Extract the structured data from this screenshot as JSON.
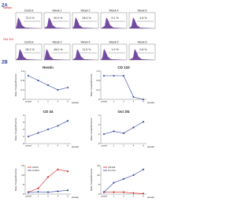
{
  "panel_a": {
    "label": "2A",
    "rows": [
      {
        "marker": "Nestin",
        "plots": [
          {
            "title": "Control",
            "value_label": "72.0 %"
          },
          {
            "title": "Week 1",
            "value_label": "90.9 %"
          },
          {
            "title": "Week 2",
            "value_label": "28.5 %"
          },
          {
            "title": "Week 4",
            "value_label": "9.1 %"
          },
          {
            "title": "Week 6",
            "value_label": "4.8 %"
          }
        ]
      },
      {
        "marker": "Oct 3/4",
        "plots": [
          {
            "title": "Control",
            "value_label": "28.3 %"
          },
          {
            "title": "Week 2",
            "value_label": "48.0 %"
          },
          {
            "title": "Week 4",
            "value_label": "11.0 %"
          },
          {
            "title": "Week 5",
            "value_label": "1.9 %"
          },
          {
            "title": "Week 6",
            "value_label": "0.8 %"
          }
        ]
      }
    ]
  },
  "panel_b": {
    "label": "2B",
    "charts": [
      {
        "title": "Nestin",
        "y_label": "Ratio Treated/Control",
        "x_label": "(week)",
        "categories": [
          "control",
          "1",
          "2",
          "4",
          "6"
        ],
        "ylim": [
          0,
          1.2
        ],
        "yticks": [
          0,
          0.4,
          0.8,
          1.2
        ],
        "series": [
          {
            "color": "#2b3f9c",
            "values": [
              1.0,
              0.8,
              0.6,
              0.4,
              0.5
            ]
          }
        ]
      },
      {
        "title": "CD 133",
        "y_label": "Ratio Treated/Control",
        "x_label": "(week)",
        "categories": [
          "control",
          "1",
          "2",
          "4",
          "6"
        ],
        "ylim": [
          0,
          1.2
        ],
        "yticks": [
          0,
          0.4,
          0.8,
          1.2
        ],
        "series": [
          {
            "color": "#2b3f9c",
            "values": [
              1.0,
              1.0,
              1.0,
              0.1,
              0.0
            ]
          }
        ]
      },
      {
        "title": "CD 34",
        "y_label": "Ratio Treated/Control",
        "x_label": "(week)",
        "categories": [
          "control",
          "1",
          "2",
          "4",
          "6"
        ],
        "ylim": [
          0,
          4
        ],
        "yticks": [
          0,
          1,
          2,
          3,
          4
        ],
        "series": [
          {
            "color": "#2b3f9c",
            "values": [
              1.0,
              1.5,
              2.0,
              2.5,
              3.2
            ]
          }
        ]
      },
      {
        "title": "Oct 3/4",
        "y_label": "Ratio Treated/Control",
        "x_label": "(week)",
        "categories": [
          "control",
          "1",
          "2",
          "4",
          "6"
        ],
        "ylim": [
          0,
          3
        ],
        "yticks": [
          0,
          1,
          2,
          3
        ],
        "series": [
          {
            "color": "#2b3f9c",
            "values": [
              1.0,
              1.3,
              1.1,
              1.7,
              2.3
            ]
          }
        ]
      },
      {
        "y_label": "Ratio Treated/Control",
        "x_label": "(week)",
        "categories": [
          "control",
          "1",
          "2",
          "4",
          "6"
        ],
        "ylim": [
          0,
          15
        ],
        "yticks": [
          0,
          5,
          10,
          15
        ],
        "series": [
          {
            "name": "CD34",
            "color": "#d62020",
            "values": [
              1,
              3,
              9,
              13,
              12
            ]
          },
          {
            "name": "Oct3/4",
            "color": "#2b3f9c",
            "values": [
              1,
              1.2,
              1,
              1.5,
              2
            ]
          }
        ]
      },
      {
        "y_label": "Ratio Treated/Control",
        "x_label": "(week)",
        "categories": [
          "control",
          "1",
          "2",
          "4",
          "6"
        ],
        "ylim": [
          0,
          15
        ],
        "yticks": [
          0,
          5,
          10,
          15
        ],
        "series": [
          {
            "name": "CD133",
            "color": "#d62020",
            "values": [
              1,
              1,
              1,
              0.5,
              0.3
            ]
          },
          {
            "name": "Oct 3/4",
            "color": "#2b3f9c",
            "values": [
              1,
              6,
              8,
              10,
              13
            ]
          }
        ]
      }
    ]
  }
}
